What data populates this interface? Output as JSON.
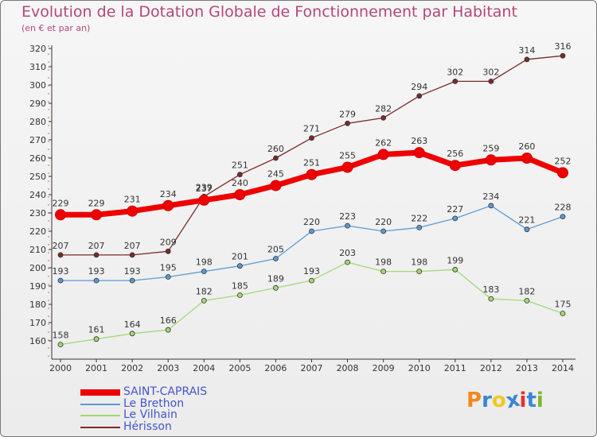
{
  "header": {
    "title": "Evolution de la Dotation Globale de Fonctionnement par Habitant",
    "subtitle": "(en € et par an)"
  },
  "logo": {
    "text": "Proxiti",
    "colors": [
      "#f08a1c",
      "#3a86d4",
      "#f0c81c",
      "#3a86d4",
      "#e8302a",
      "#3a86d4",
      "#78b82a"
    ]
  },
  "chart_data": {
    "type": "line",
    "x": [
      "2000",
      "2001",
      "2002",
      "2003",
      "2004",
      "2005",
      "2006",
      "2007",
      "2008",
      "2009",
      "2010",
      "2011",
      "2012",
      "2013",
      "2014"
    ],
    "ylim": [
      150,
      320
    ],
    "yticks": [
      160,
      170,
      180,
      190,
      200,
      210,
      220,
      230,
      240,
      250,
      260,
      270,
      280,
      290,
      300,
      310,
      320
    ],
    "grid": false,
    "legend_position": "bottom-left",
    "series": [
      {
        "name": "SAINT-CAPRAIS",
        "color": "#ee0000",
        "thick": true,
        "label_color": "#4455cc",
        "values": [
          229,
          229,
          231,
          234,
          237,
          240,
          245,
          251,
          255,
          262,
          263,
          256,
          259,
          260,
          252
        ]
      },
      {
        "name": "Le Brethon",
        "color": "#5b9bd5",
        "thick": false,
        "label_color": "#4455cc",
        "values": [
          193,
          193,
          193,
          195,
          198,
          201,
          205,
          220,
          223,
          220,
          222,
          227,
          234,
          221,
          228
        ]
      },
      {
        "name": "Le Vilhain",
        "color": "#a3d977",
        "thick": false,
        "label_color": "#4455cc",
        "values": [
          158,
          161,
          164,
          166,
          182,
          185,
          189,
          193,
          203,
          198,
          198,
          199,
          183,
          182,
          175
        ]
      },
      {
        "name": "Hérisson",
        "color": "#7b2a2a",
        "thick": false,
        "label_color": "#4455cc",
        "values": [
          207,
          207,
          207,
          209,
          239,
          251,
          260,
          271,
          279,
          282,
          294,
          302,
          302,
          314,
          316
        ]
      }
    ]
  }
}
